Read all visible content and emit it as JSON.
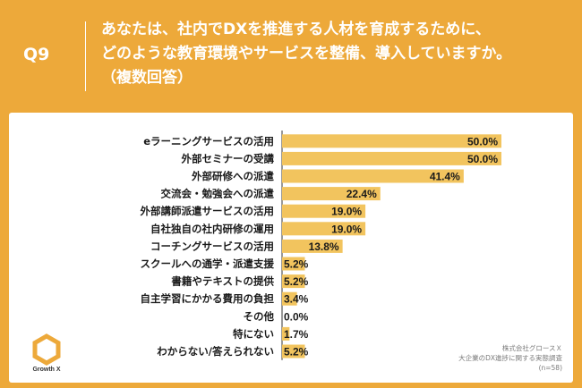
{
  "header": {
    "q_number": "Q9",
    "question_lines": [
      "あなたは、社内でDXを推進する人材を育成するために、",
      "どのような教育環境やサービスを整備、導入していますか。",
      "（複数回答）"
    ]
  },
  "colors": {
    "background": "#EDA93A",
    "bar": "#F2C45E",
    "text": "#1a1a1a"
  },
  "chart_data": {
    "type": "bar",
    "orientation": "horizontal",
    "categories": [
      "eラーニングサービスの活用",
      "外部セミナーの受講",
      "外部研修への派遣",
      "交流会・勉強会への派遣",
      "外部講師派遣サービスの活用",
      "自社独自の社内研修の運用",
      "コーチングサービスの活用",
      "スクールへの通学・派遣支援",
      "書籍やテキストの提供",
      "自主学習にかかる費用の負担",
      "その他",
      "特にない",
      "わからない/答えられない"
    ],
    "values": [
      50.0,
      50.0,
      41.4,
      22.4,
      19.0,
      19.0,
      13.8,
      5.2,
      5.2,
      3.4,
      0.0,
      1.7,
      5.2
    ],
    "value_labels": [
      "50.0%",
      "50.0%",
      "41.4%",
      "22.4%",
      "19.0%",
      "19.0%",
      "13.8%",
      "5.2%",
      "5.2%",
      "3.4%",
      "0.0%",
      "1.7%",
      "5.2%"
    ],
    "xlim": [
      0,
      50
    ]
  },
  "footer": {
    "logo_text": "Growth X",
    "source_lines": [
      "株式会社グロースＸ",
      "大企業のDX進捗に関する実態調査",
      "(n=58)"
    ]
  }
}
